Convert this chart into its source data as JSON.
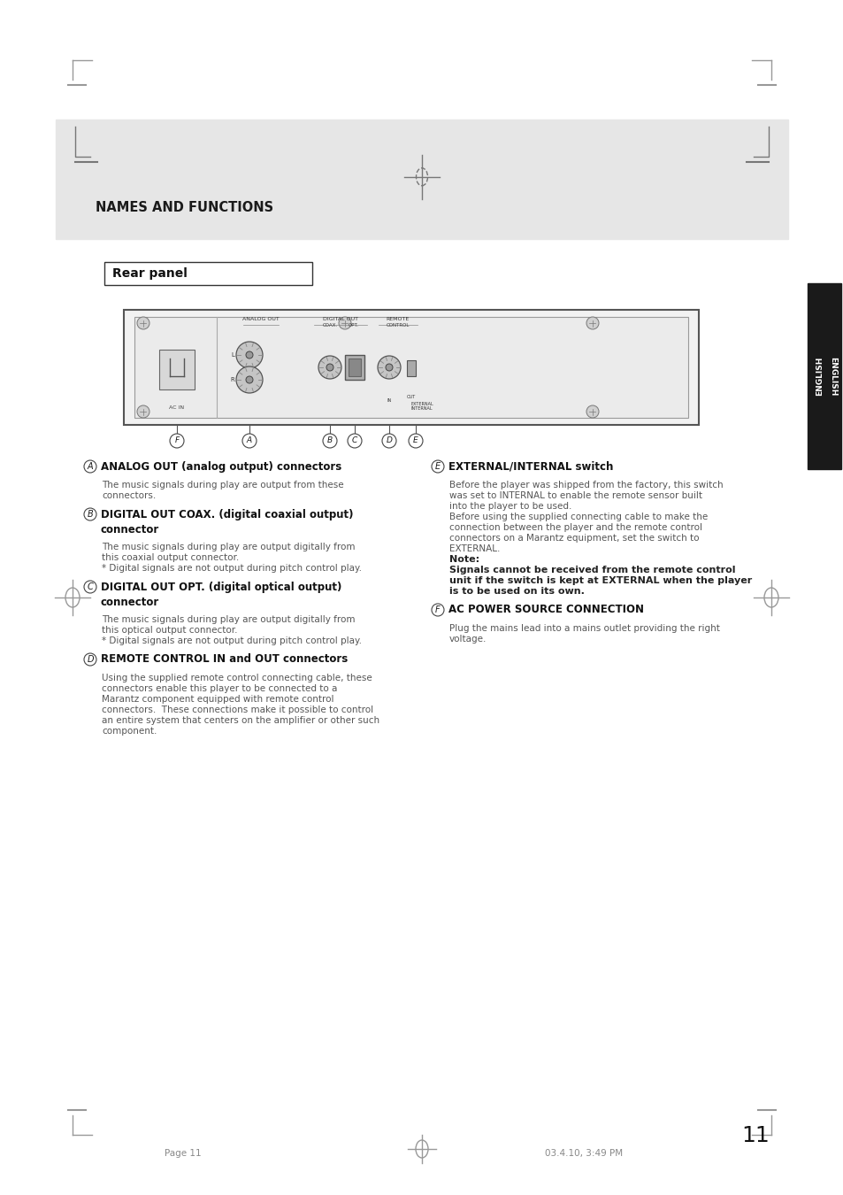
{
  "page_bg": "#ffffff",
  "header_bg": "#e6e6e6",
  "header_text": "NAMES AND FUNCTIONS",
  "section_title": "Rear panel",
  "sidebar_bg": "#1a1a1a",
  "page_number": "11",
  "footer_left": "Page 11",
  "footer_right": "03.4.10, 3:49 PM",
  "items": [
    {
      "label": "A",
      "title": "ANALOG OUT (analog output) connectors",
      "body_lines": [
        [
          "normal",
          "The music signals during play are output from these"
        ],
        [
          "normal",
          "connectors."
        ]
      ]
    },
    {
      "label": "B",
      "title": "DIGITAL OUT COAX. (digital coaxial output)",
      "title2": "connector",
      "body_lines": [
        [
          "normal",
          "The music signals during play are output digitally from"
        ],
        [
          "normal",
          "this coaxial output connector."
        ],
        [
          "normal",
          "* Digital signals are not output during pitch control play."
        ]
      ]
    },
    {
      "label": "C",
      "title": "DIGITAL OUT OPT. (digital optical output)",
      "title2": "connector",
      "body_lines": [
        [
          "normal",
          "The music signals during play are output digitally from"
        ],
        [
          "normal",
          "this optical output connector."
        ],
        [
          "normal",
          "* Digital signals are not output during pitch control play."
        ]
      ]
    },
    {
      "label": "D",
      "title": "REMOTE CONTROL IN and OUT connectors",
      "title2": "",
      "body_lines": [
        [
          "normal",
          "Using the supplied remote control connecting cable, these"
        ],
        [
          "normal",
          "connectors enable this player to be connected to a"
        ],
        [
          "normal",
          "Marantz component equipped with remote control"
        ],
        [
          "normal",
          "connectors.  These connections make it possible to control"
        ],
        [
          "normal",
          "an entire system that centers on the amplifier or other such"
        ],
        [
          "normal",
          "component."
        ]
      ]
    },
    {
      "label": "E",
      "title": "EXTERNAL/INTERNAL switch",
      "title2": "",
      "body_lines": [
        [
          "normal",
          "Before the player was shipped from the factory, this switch"
        ],
        [
          "normal",
          "was set to INTERNAL to enable the remote sensor built"
        ],
        [
          "normal",
          "into the player to be used."
        ],
        [
          "normal",
          "Before using the supplied connecting cable to make the"
        ],
        [
          "normal",
          "connection between the player and the remote control"
        ],
        [
          "normal",
          "connectors on a Marantz equipment, set the switch to"
        ],
        [
          "normal",
          "EXTERNAL."
        ],
        [
          "bold",
          "Note:"
        ],
        [
          "bold",
          "Signals cannot be received from the remote control"
        ],
        [
          "bold",
          "unit if the switch is kept at EXTERNAL when the player"
        ],
        [
          "bold",
          "is to be used on its own."
        ]
      ]
    },
    {
      "label": "F",
      "title": "AC POWER SOURCE CONNECTION",
      "title2": "",
      "body_lines": [
        [
          "normal",
          "Plug the mains lead into a mains outlet providing the right"
        ],
        [
          "normal",
          "voltage."
        ]
      ]
    }
  ]
}
